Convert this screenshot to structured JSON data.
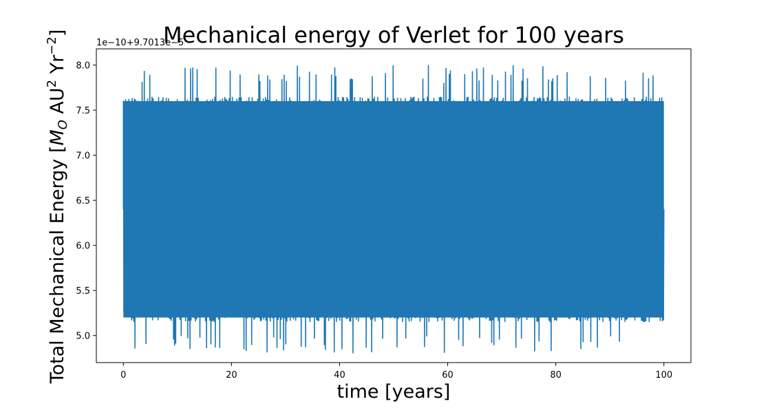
{
  "chart_data": {
    "type": "line",
    "title": "Mechanical energy of Verlet for 100 years",
    "xlabel": "time [years]",
    "ylabel": "Total Mechanical Energy [M_O AU² Yr⁻2]",
    "ylabel_parts": {
      "pre": "Total Mechanical Energy [",
      "m": "M",
      "m_sub": "O",
      "au": " AU",
      "au_sup": "2",
      "yr": " Yr",
      "yr_sup": "−2",
      "post": "]"
    },
    "offset_text": "1e−10+9.7013e−5",
    "xlim": [
      -5,
      105
    ],
    "ylim": [
      4.7,
      8.18
    ],
    "xticks": [
      0,
      20,
      40,
      60,
      80,
      100
    ],
    "xtick_labels": [
      "0",
      "20",
      "40",
      "60",
      "80",
      "100"
    ],
    "yticks": [
      5.0,
      5.5,
      6.0,
      6.5,
      7.0,
      7.5,
      8.0
    ],
    "ytick_labels": [
      "5.0",
      "5.5",
      "6.0",
      "6.5",
      "7.0",
      "7.5",
      "8.0"
    ],
    "series": [
      {
        "color": "#1f77b4",
        "x_range": [
          0,
          100
        ],
        "y_center": 6.4,
        "inner_band": [
          5.15,
          7.65
        ],
        "outer_band": [
          4.8,
          8.0
        ],
        "approx_values": {
          "start": 6.4,
          "min": 4.78,
          "max": 8.02
        }
      }
    ],
    "grid": false,
    "legend": "none"
  }
}
